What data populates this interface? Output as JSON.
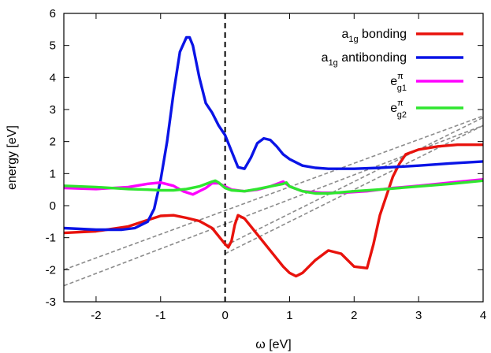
{
  "chart_data": {
    "type": "line",
    "xlabel": "ω [eV]",
    "ylabel": "energy [eV]",
    "xlim": [
      -2.5,
      4
    ],
    "ylim": [
      -3,
      6
    ],
    "xticks": [
      "-2",
      "-1",
      "0",
      "1",
      "2",
      "3",
      "4"
    ],
    "yticks": [
      "-3",
      "-2",
      "-1",
      "0",
      "1",
      "2",
      "3",
      "4",
      "5",
      "6"
    ],
    "grid": false,
    "legend_position": "top-right",
    "vertical_marker_x": 0,
    "series": [
      {
        "name": "a1g bonding",
        "legend": {
          "base": "a",
          "sub": "1g",
          "text": " bonding"
        },
        "color": "#e8120c",
        "x": [
          -2.5,
          -2.0,
          -1.5,
          -1.2,
          -1.0,
          -0.8,
          -0.6,
          -0.4,
          -0.2,
          0.0,
          0.05,
          0.1,
          0.15,
          0.2,
          0.3,
          0.4,
          0.5,
          0.7,
          0.9,
          1.0,
          1.1,
          1.2,
          1.4,
          1.6,
          1.8,
          2.0,
          2.2,
          2.3,
          2.4,
          2.5,
          2.6,
          2.7,
          2.8,
          3.0,
          3.3,
          3.6,
          4.0
        ],
        "y": [
          -0.85,
          -0.8,
          -0.65,
          -0.45,
          -0.32,
          -0.3,
          -0.38,
          -0.48,
          -0.7,
          -1.2,
          -1.3,
          -1.1,
          -0.6,
          -0.3,
          -0.4,
          -0.65,
          -0.9,
          -1.4,
          -1.9,
          -2.1,
          -2.2,
          -2.1,
          -1.7,
          -1.4,
          -1.5,
          -1.9,
          -1.95,
          -1.2,
          -0.3,
          0.3,
          0.9,
          1.3,
          1.6,
          1.75,
          1.85,
          1.9,
          1.9
        ]
      },
      {
        "name": "a1g antibonding",
        "legend": {
          "base": "a",
          "sub": "1g",
          "text": " antibonding"
        },
        "color": "#0a14e6",
        "x": [
          -2.5,
          -2.0,
          -1.6,
          -1.4,
          -1.2,
          -1.1,
          -1.0,
          -0.9,
          -0.8,
          -0.7,
          -0.6,
          -0.55,
          -0.5,
          -0.4,
          -0.3,
          -0.2,
          -0.1,
          0.0,
          0.1,
          0.2,
          0.3,
          0.4,
          0.5,
          0.6,
          0.7,
          0.8,
          0.9,
          1.0,
          1.2,
          1.4,
          1.6,
          2.0,
          2.4,
          3.0,
          3.5,
          4.0
        ],
        "y": [
          -0.7,
          -0.75,
          -0.75,
          -0.7,
          -0.5,
          -0.1,
          0.8,
          2.0,
          3.5,
          4.8,
          5.25,
          5.25,
          5.0,
          4.0,
          3.2,
          2.9,
          2.5,
          2.2,
          1.7,
          1.2,
          1.15,
          1.5,
          1.95,
          2.1,
          2.05,
          1.85,
          1.6,
          1.45,
          1.25,
          1.18,
          1.15,
          1.15,
          1.18,
          1.25,
          1.32,
          1.38
        ]
      },
      {
        "name": "eπ g1",
        "legend": {
          "base": "e",
          "sub": "g1",
          "sup": "π",
          "text": ""
        },
        "color": "#ff00ff",
        "x": [
          -2.5,
          -2.0,
          -1.5,
          -1.2,
          -1.0,
          -0.8,
          -0.65,
          -0.5,
          -0.3,
          -0.2,
          -0.1,
          0.0,
          0.1,
          0.3,
          0.5,
          0.7,
          0.9,
          1.0,
          1.2,
          1.5,
          1.8,
          2.2,
          2.6,
          3.0,
          3.5,
          4.0
        ],
        "y": [
          0.55,
          0.52,
          0.58,
          0.68,
          0.72,
          0.62,
          0.45,
          0.35,
          0.55,
          0.7,
          0.7,
          0.6,
          0.5,
          0.45,
          0.5,
          0.6,
          0.75,
          0.6,
          0.45,
          0.4,
          0.4,
          0.45,
          0.55,
          0.62,
          0.72,
          0.82
        ]
      },
      {
        "name": "eπ g2",
        "legend": {
          "base": "e",
          "sub": "g2",
          "sup": "π",
          "text": ""
        },
        "color": "#2fe62f",
        "x": [
          -2.5,
          -2.0,
          -1.5,
          -1.2,
          -1.0,
          -0.8,
          -0.6,
          -0.4,
          -0.2,
          -0.15,
          -0.1,
          0.0,
          0.1,
          0.3,
          0.5,
          0.7,
          0.9,
          0.95,
          1.0,
          1.2,
          1.4,
          1.6,
          2.0,
          2.5,
          3.0,
          3.5,
          4.0
        ],
        "y": [
          0.62,
          0.58,
          0.52,
          0.5,
          0.48,
          0.48,
          0.52,
          0.6,
          0.75,
          0.78,
          0.72,
          0.55,
          0.48,
          0.45,
          0.52,
          0.6,
          0.68,
          0.72,
          0.6,
          0.45,
          0.38,
          0.38,
          0.45,
          0.52,
          0.6,
          0.68,
          0.78
        ]
      }
    ],
    "reference_lines": [
      {
        "style": "gray-dashed",
        "x": [
          -2.5,
          4.0
        ],
        "y": [
          -2.5,
          2.5
        ]
      },
      {
        "style": "gray-dashed",
        "x": [
          -2.5,
          4.0
        ],
        "y": [
          -2.0,
          2.8
        ]
      },
      {
        "style": "gray-dashed",
        "x": [
          0.0,
          4.0
        ],
        "y": [
          -1.5,
          2.5
        ]
      },
      {
        "style": "gray-dashed",
        "x": [
          0.0,
          4.0
        ],
        "y": [
          -1.25,
          2.75
        ]
      }
    ]
  }
}
